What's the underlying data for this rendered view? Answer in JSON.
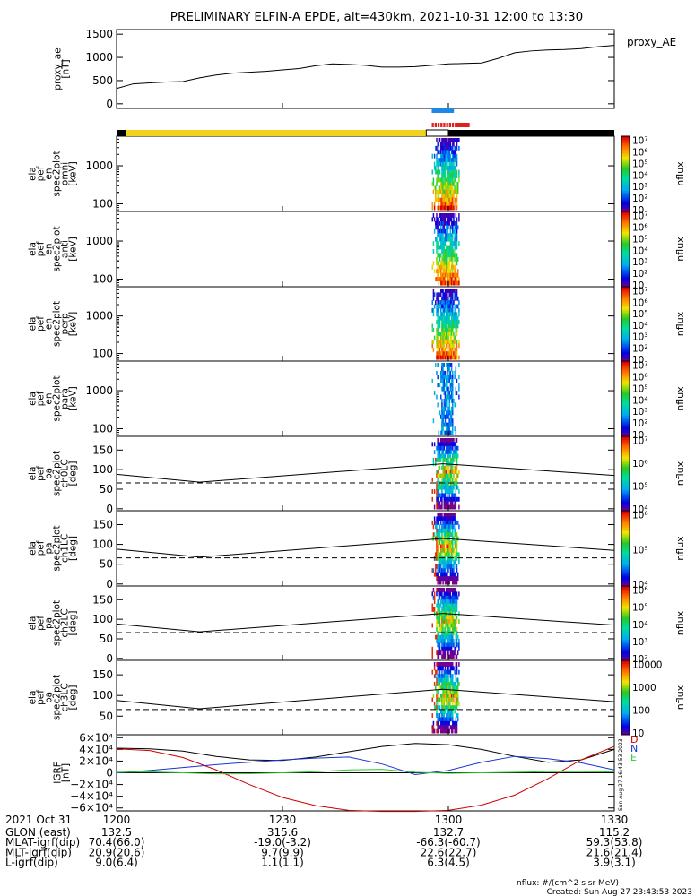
{
  "title": "PRELIMINARY ELFIN-A EPDE, alt=430km, 2021-10-31 12:00 to 13:30",
  "colors": {
    "bar_yellow": "#f2d21a",
    "bar_black": "#000000",
    "bar_blue": "#1e88e5",
    "bar_red": "#e0201c",
    "bx_red": "#cc0000",
    "by_green": "#2ecc2e",
    "bz_blue": "#1a33d6"
  },
  "chart_data": [
    {
      "type": "line",
      "name": "proxy_ae",
      "ylabel_lines": [
        "proxy_ae",
        "[nT]"
      ],
      "legend": "proxy_AE",
      "ylim": [
        -100,
        1600
      ],
      "yticks": [
        0,
        500,
        1000,
        1500
      ],
      "x": [
        1200,
        1203,
        1206,
        1209,
        1212,
        1215,
        1218,
        1221,
        1224,
        1227,
        1230,
        1233,
        1236,
        1239,
        1242,
        1245,
        1248,
        1251,
        1254,
        1257,
        1300,
        1303,
        1306,
        1309,
        1312,
        1315,
        1318,
        1321,
        1324,
        1327,
        1330
      ],
      "values": [
        330,
        430,
        450,
        470,
        480,
        560,
        620,
        660,
        680,
        700,
        730,
        760,
        820,
        860,
        850,
        830,
        790,
        790,
        800,
        830,
        860,
        870,
        880,
        980,
        1100,
        1140,
        1160,
        1170,
        1190,
        1230,
        1260
      ]
    },
    {
      "type": "heatmap",
      "name": "omni",
      "ylabel_lines": [
        "ela",
        "pef",
        "en",
        "spec2plot",
        "omni",
        "[keV]"
      ],
      "yticks": [
        100,
        1000
      ],
      "ylim": [
        63,
        6000
      ],
      "yscale": "log",
      "colorbar_label": "nflux",
      "colorbar_ticks": [
        "10",
        "10²",
        "10³",
        "10⁴",
        "10⁵",
        "10⁶",
        "10⁷"
      ]
    },
    {
      "type": "heatmap",
      "name": "anti",
      "ylabel_lines": [
        "ela",
        "pef",
        "en",
        "spec2plot",
        "anti",
        "[keV]"
      ],
      "yticks": [
        100,
        1000
      ],
      "ylim": [
        63,
        6000
      ],
      "yscale": "log",
      "colorbar_label": "nflux",
      "colorbar_ticks": [
        "10",
        "10²",
        "10³",
        "10⁴",
        "10⁵",
        "10⁶",
        "10⁷"
      ]
    },
    {
      "type": "heatmap",
      "name": "perp",
      "ylabel_lines": [
        "ela",
        "pef",
        "en",
        "spec2plot",
        "perp",
        "[keV]"
      ],
      "yticks": [
        100,
        1000
      ],
      "ylim": [
        63,
        6000
      ],
      "yscale": "log",
      "colorbar_label": "nflux",
      "colorbar_ticks": [
        "10",
        "10²",
        "10³",
        "10⁴",
        "10⁵",
        "10⁶",
        "10⁷"
      ]
    },
    {
      "type": "heatmap",
      "name": "para",
      "ylabel_lines": [
        "ela",
        "pef",
        "en",
        "spec2plot",
        "para",
        "[keV]"
      ],
      "yticks": [
        100,
        1000
      ],
      "ylim": [
        63,
        6000
      ],
      "yscale": "log",
      "colorbar_label": "nflux",
      "colorbar_ticks": [
        "10",
        "10²",
        "10³",
        "10⁴",
        "10⁵",
        "10⁶",
        "10⁷"
      ]
    },
    {
      "type": "heatmap",
      "name": "ch0LC",
      "ylabel_lines": [
        "ela",
        "pef",
        "pa",
        "spec2plot",
        "ch0LC",
        "[deg]"
      ],
      "yticks": [
        0,
        50,
        100,
        150
      ],
      "ylim": [
        -5,
        185
      ],
      "colorbar_label": "nflux",
      "colorbar_ticks": [
        "10⁴",
        "10⁵",
        "10⁶",
        "10⁷"
      ],
      "lc_solid": [
        [
          1200,
          88
        ],
        [
          1215,
          68
        ],
        [
          1259,
          115
        ],
        [
          1330,
          85
        ]
      ],
      "lc_dashed": 66
    },
    {
      "type": "heatmap",
      "name": "ch1LC",
      "ylabel_lines": [
        "ela",
        "pef",
        "pa",
        "spec2plot",
        "ch1LC",
        "[deg]"
      ],
      "yticks": [
        0,
        50,
        100,
        150
      ],
      "ylim": [
        -5,
        185
      ],
      "colorbar_label": "nflux",
      "colorbar_ticks": [
        "10⁴",
        "10⁵",
        "10⁶"
      ],
      "lc_solid": [
        [
          1200,
          88
        ],
        [
          1215,
          68
        ],
        [
          1259,
          115
        ],
        [
          1330,
          85
        ]
      ],
      "lc_dashed": 66
    },
    {
      "type": "heatmap",
      "name": "ch2LC",
      "ylabel_lines": [
        "ela",
        "pef",
        "pa",
        "spec2plot",
        "ch2LC",
        "[deg]"
      ],
      "yticks": [
        0,
        50,
        100,
        150
      ],
      "ylim": [
        -5,
        185
      ],
      "colorbar_label": "nflux",
      "colorbar_ticks": [
        "10²",
        "10³",
        "10⁴",
        "10⁵",
        "10⁶"
      ],
      "lc_solid": [
        [
          1200,
          88
        ],
        [
          1215,
          68
        ],
        [
          1259,
          115
        ],
        [
          1330,
          85
        ]
      ],
      "lc_dashed": 66
    },
    {
      "type": "heatmap",
      "name": "ch3LC",
      "ylabel_lines": [
        "ela",
        "pef",
        "pa",
        "spec2plot",
        "ch3LC",
        "[deg]"
      ],
      "yticks": [
        50,
        100,
        150
      ],
      "ylim": [
        5,
        185
      ],
      "colorbar_label": "nflux",
      "colorbar_ticks": [
        "10",
        "100",
        "1000",
        "10000"
      ],
      "lc_solid": [
        [
          1200,
          88
        ],
        [
          1215,
          68
        ],
        [
          1259,
          115
        ],
        [
          1330,
          85
        ]
      ],
      "lc_dashed": 66
    },
    {
      "type": "line",
      "name": "IGRF",
      "ylabel_lines": [
        "IGRF",
        "[nT]"
      ],
      "ylim": [
        -65000,
        65000
      ],
      "yticks": [
        60000,
        40000,
        20000,
        0,
        -20000,
        -40000,
        -60000
      ],
      "ytick_labels": [
        "6×10⁴",
        "4×10⁴",
        "2×10⁴",
        "0",
        "−2×10⁴",
        "−4×10⁴",
        "−6×10⁴"
      ],
      "legend_letters": [
        "D",
        "N",
        "E"
      ],
      "x": [
        1200,
        1206,
        1212,
        1218,
        1224,
        1230,
        1236,
        1242,
        1248,
        1254,
        1300,
        1306,
        1312,
        1318,
        1324,
        1330
      ],
      "series": [
        {
          "values": [
            42000,
            41000,
            37000,
            28000,
            22000,
            21000,
            27000,
            36000,
            45000,
            50000,
            48000,
            40000,
            28000,
            18000,
            22000,
            40000
          ]
        },
        {
          "values": [
            41000,
            38000,
            26000,
            5000,
            -20000,
            -42000,
            -56000,
            -64000,
            -66000,
            -66000,
            -64000,
            -55000,
            -38000,
            -10000,
            22000,
            45000
          ]
        },
        {
          "values": [
            0,
            4000,
            9000,
            14000,
            18000,
            22000,
            25000,
            27000,
            15000,
            -3000,
            4000,
            18000,
            28000,
            24000,
            17000,
            5000
          ]
        },
        {
          "values": [
            1000,
            1500,
            0,
            -2000,
            -1500,
            0,
            2000,
            5000,
            6000,
            1000,
            -1000,
            0,
            1000,
            2000,
            2000,
            1500
          ]
        }
      ]
    }
  ],
  "x_axis": {
    "ticks": [
      "1200",
      "1230",
      "1300",
      "1330"
    ],
    "xlim": [
      1200,
      1330
    ]
  },
  "ephemeris": {
    "date_label": "2021 Oct 31",
    "rows": [
      {
        "label": "GLON (east)",
        "values": [
          "132.5",
          "315.6",
          "132.7",
          "115.2"
        ]
      },
      {
        "label": "MLAT-igrf(dip)",
        "values": [
          "70.4(66.0)",
          "-19.0(-3.2)",
          "-66.3(-60.7)",
          "59.3(53.8)"
        ]
      },
      {
        "label": "MLT-igrf(dip)",
        "values": [
          "20.9(20.6)",
          "9.7(9.9)",
          "22.6(22.7)",
          "21.6(21.4)"
        ]
      },
      {
        "label": "L-igrf(dip)",
        "values": [
          "9.0(6.4)",
          "1.1(1.1)",
          "6.3(4.5)",
          "3.9(3.1)"
        ]
      }
    ]
  },
  "footer": {
    "units": "nflux: #/(cm^2 s sr MeV)",
    "created": "Created: Sun Aug 27 23:43:53 2023",
    "side_stamp": "Sun Aug 27 16:43:53 2023"
  }
}
